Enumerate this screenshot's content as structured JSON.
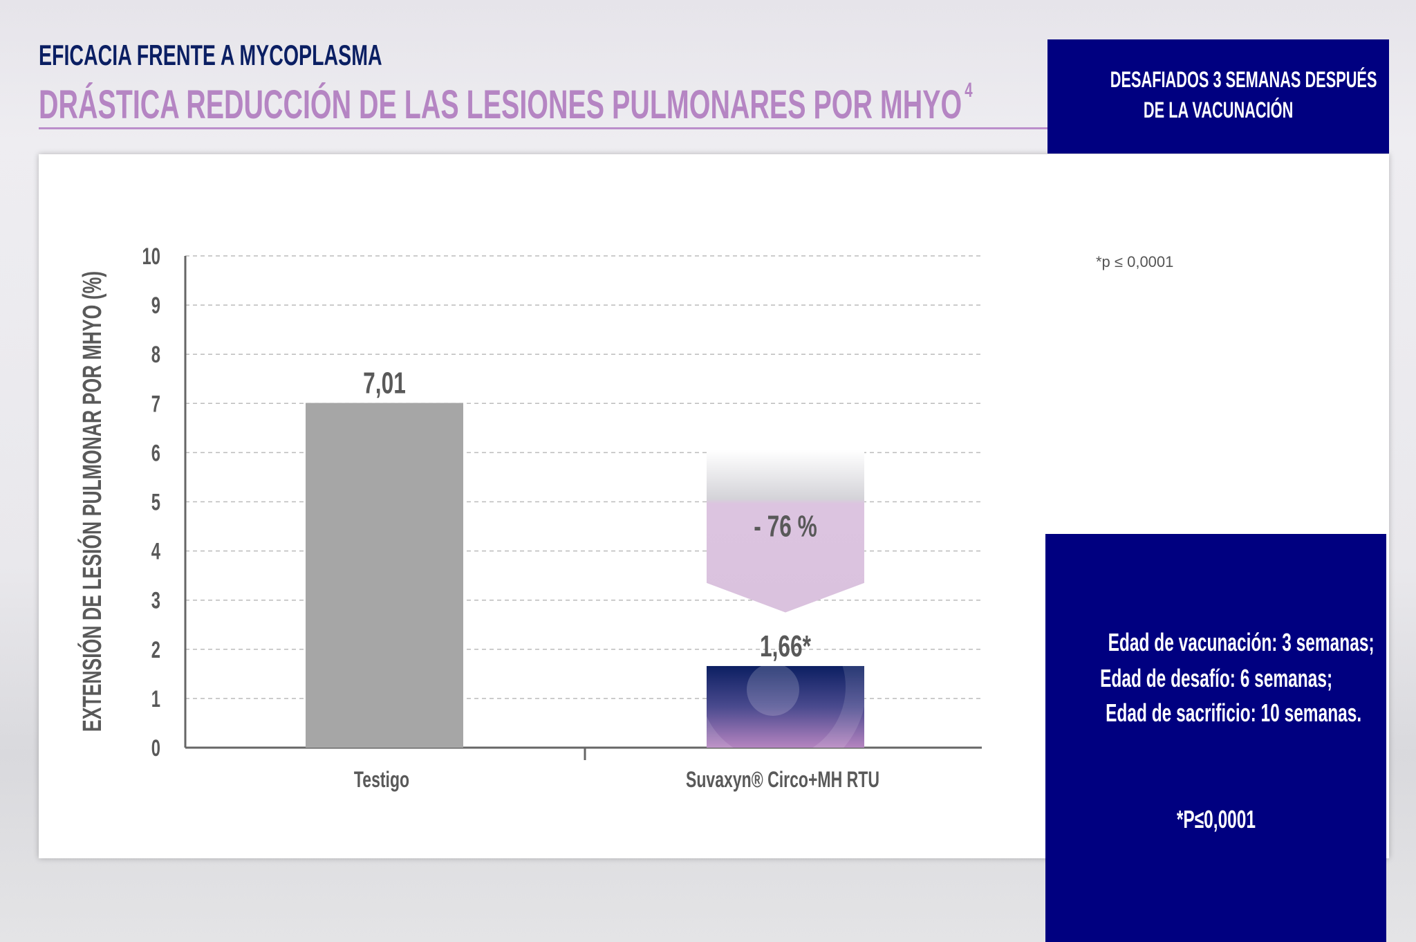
{
  "header": {
    "title": "EFICACIA FRENTE A MYCOPLASMA",
    "subtitle": "DRÁSTICA REDUCCIÓN DE LAS LESIONES PULMONARES POR MHYO",
    "subtitle_ref": "4"
  },
  "info_top": {
    "lines": [
      "DESAFIADOS 3 SEMANAS DESPUÉS",
      "DE LA VACUNACIÓN"
    ]
  },
  "info_bottom": {
    "lines": [
      "Edad de vacunación: 3 semanas;",
      "Edad de desafío: 6 semanas;",
      "Edad de sacrificio: 10 semanas."
    ],
    "pvalue": "*P≤0,0001"
  },
  "footnote": "*p ≤ 0,0001",
  "colors": {
    "navy": "#000080",
    "title": "#0b1f63",
    "accent": "#b585c3",
    "bar_control": "#a6a6a6",
    "arrow": "#dcc4e0"
  },
  "chart_data": {
    "type": "bar",
    "categories": [
      "Testigo",
      "Suvaxyn® Circo+MH RTU"
    ],
    "values": [
      7.01,
      1.66
    ],
    "data_labels": [
      "7,01",
      "1,66*"
    ],
    "ylabel": "EXTENSIÓN DE LESIÓN PULMONAR POR MHYO (%)",
    "ylim": [
      0,
      10
    ],
    "yticks": [
      0,
      1,
      2,
      3,
      4,
      5,
      6,
      7,
      8,
      9,
      10
    ],
    "grid": true,
    "annotation": "- 76 %"
  }
}
